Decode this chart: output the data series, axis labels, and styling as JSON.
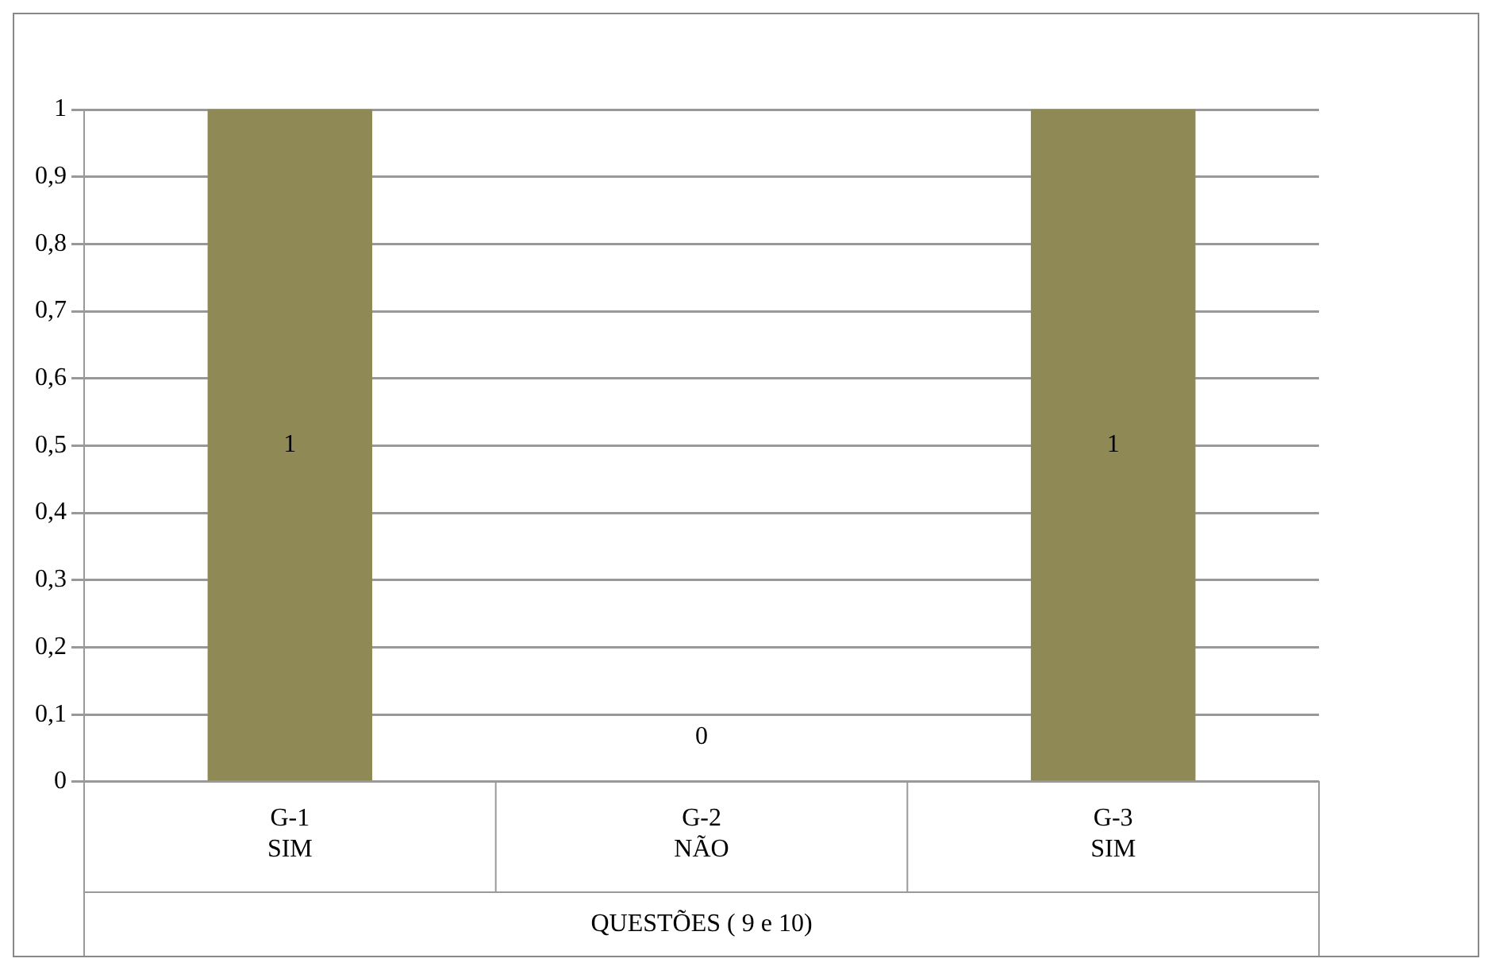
{
  "chart_data": {
    "type": "bar",
    "xlabel": "QUESTÕES ( 9 e 10)",
    "categories": [
      "G-1\nSIM",
      "G-2\nNÃO",
      "G-3\nSIM"
    ],
    "values": [
      1,
      0,
      1
    ],
    "colors": [
      "#8f8a55",
      "#000000",
      "#8f8a55"
    ],
    "ylim": [
      0,
      1
    ],
    "yticks": [
      0,
      {
        "value": 0.1,
        "label": "0,1"
      },
      {
        "value": 0.2,
        "label": "0,2"
      },
      {
        "value": 0.3,
        "label": "0,3"
      },
      {
        "value": 0.4,
        "label": "0,4"
      },
      {
        "value": 0.5,
        "label": "0,5"
      },
      {
        "value": 0.6,
        "label": "0,6"
      },
      {
        "value": 0.7,
        "label": "0,7"
      },
      {
        "value": 0.8,
        "label": "0,8"
      },
      {
        "value": 0.9,
        "label": "0,9"
      },
      1
    ],
    "grid": "y",
    "legend": false,
    "data_labels": true
  }
}
